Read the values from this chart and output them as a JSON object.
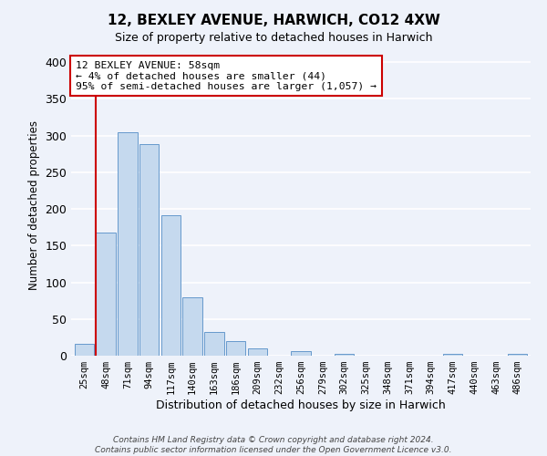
{
  "title": "12, BEXLEY AVENUE, HARWICH, CO12 4XW",
  "subtitle": "Size of property relative to detached houses in Harwich",
  "xlabel": "Distribution of detached houses by size in Harwich",
  "ylabel": "Number of detached properties",
  "bin_labels": [
    "25sqm",
    "48sqm",
    "71sqm",
    "94sqm",
    "117sqm",
    "140sqm",
    "163sqm",
    "186sqm",
    "209sqm",
    "232sqm",
    "256sqm",
    "279sqm",
    "302sqm",
    "325sqm",
    "348sqm",
    "371sqm",
    "394sqm",
    "417sqm",
    "440sqm",
    "463sqm",
    "486sqm"
  ],
  "bar_values": [
    16,
    168,
    305,
    288,
    191,
    80,
    32,
    20,
    10,
    0,
    6,
    0,
    2,
    0,
    0,
    0,
    0,
    2,
    0,
    0,
    2
  ],
  "bar_color": "#c5d9ee",
  "bar_edge_color": "#6699cc",
  "vline_x_idx": 1,
  "vline_color": "#cc0000",
  "annotation_line1": "12 BEXLEY AVENUE: 58sqm",
  "annotation_line2": "← 4% of detached houses are smaller (44)",
  "annotation_line3": "95% of semi-detached houses are larger (1,057) →",
  "annotation_box_edgecolor": "#cc0000",
  "ylim": [
    0,
    410
  ],
  "yticks": [
    0,
    50,
    100,
    150,
    200,
    250,
    300,
    350,
    400
  ],
  "footer_line1": "Contains HM Land Registry data © Crown copyright and database right 2024.",
  "footer_line2": "Contains public sector information licensed under the Open Government Licence v3.0.",
  "bg_color": "#eef2fa"
}
